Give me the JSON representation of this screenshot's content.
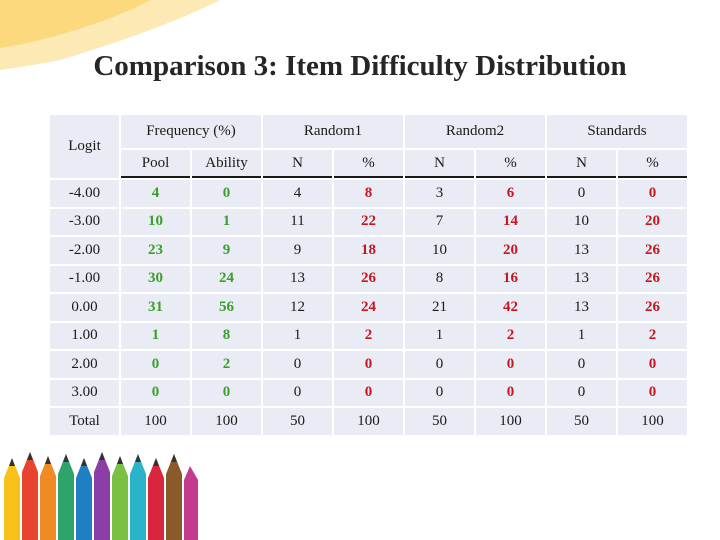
{
  "slide": {
    "title": "Comparison 3: Item Difficulty Distribution"
  },
  "table": {
    "logit_header": "Logit",
    "groups": [
      "Frequency (%)",
      "Random1",
      "Random2",
      "Standards"
    ],
    "subheaders": [
      "Pool",
      "Ability",
      "N",
      "%",
      "N",
      "%",
      "N",
      "%"
    ],
    "rows": [
      {
        "logit": "-4.00",
        "pool": "4",
        "ability": "0",
        "r1n": "4",
        "r1p": "8",
        "r2n": "3",
        "r2p": "6",
        "sn": "0",
        "sp": "0"
      },
      {
        "logit": "-3.00",
        "pool": "10",
        "ability": "1",
        "r1n": "11",
        "r1p": "22",
        "r2n": "7",
        "r2p": "14",
        "sn": "10",
        "sp": "20"
      },
      {
        "logit": "-2.00",
        "pool": "23",
        "ability": "9",
        "r1n": "9",
        "r1p": "18",
        "r2n": "10",
        "r2p": "20",
        "sn": "13",
        "sp": "26"
      },
      {
        "logit": "-1.00",
        "pool": "30",
        "ability": "24",
        "r1n": "13",
        "r1p": "26",
        "r2n": "8",
        "r2p": "16",
        "sn": "13",
        "sp": "26"
      },
      {
        "logit": "0.00",
        "pool": "31",
        "ability": "56",
        "r1n": "12",
        "r1p": "24",
        "r2n": "21",
        "r2p": "42",
        "sn": "13",
        "sp": "26"
      },
      {
        "logit": "1.00",
        "pool": "1",
        "ability": "8",
        "r1n": "1",
        "r1p": "2",
        "r2n": "1",
        "r2p": "2",
        "sn": "1",
        "sp": "2"
      },
      {
        "logit": "2.00",
        "pool": "0",
        "ability": "2",
        "r1n": "0",
        "r1p": "0",
        "r2n": "0",
        "r2p": "0",
        "sn": "0",
        "sp": "0"
      },
      {
        "logit": "3.00",
        "pool": "0",
        "ability": "0",
        "r1n": "0",
        "r1p": "0",
        "r2n": "0",
        "r2p": "0",
        "sn": "0",
        "sp": "0"
      },
      {
        "logit": "Total",
        "pool": "100",
        "ability": "100",
        "r1n": "50",
        "r1p": "100",
        "r2n": "50",
        "r2p": "100",
        "sn": "50",
        "sp": "100"
      }
    ]
  },
  "colors": {
    "emphasis_red": "#c8161d",
    "emphasis_green": "#3aa02a",
    "cell_background": "#e9ecf4",
    "corner_decoration": "#fbd97c"
  },
  "decorations": {
    "corner_icon": "yellow-swoosh-decoration",
    "pencils_icon": "colored-pencils-image"
  }
}
